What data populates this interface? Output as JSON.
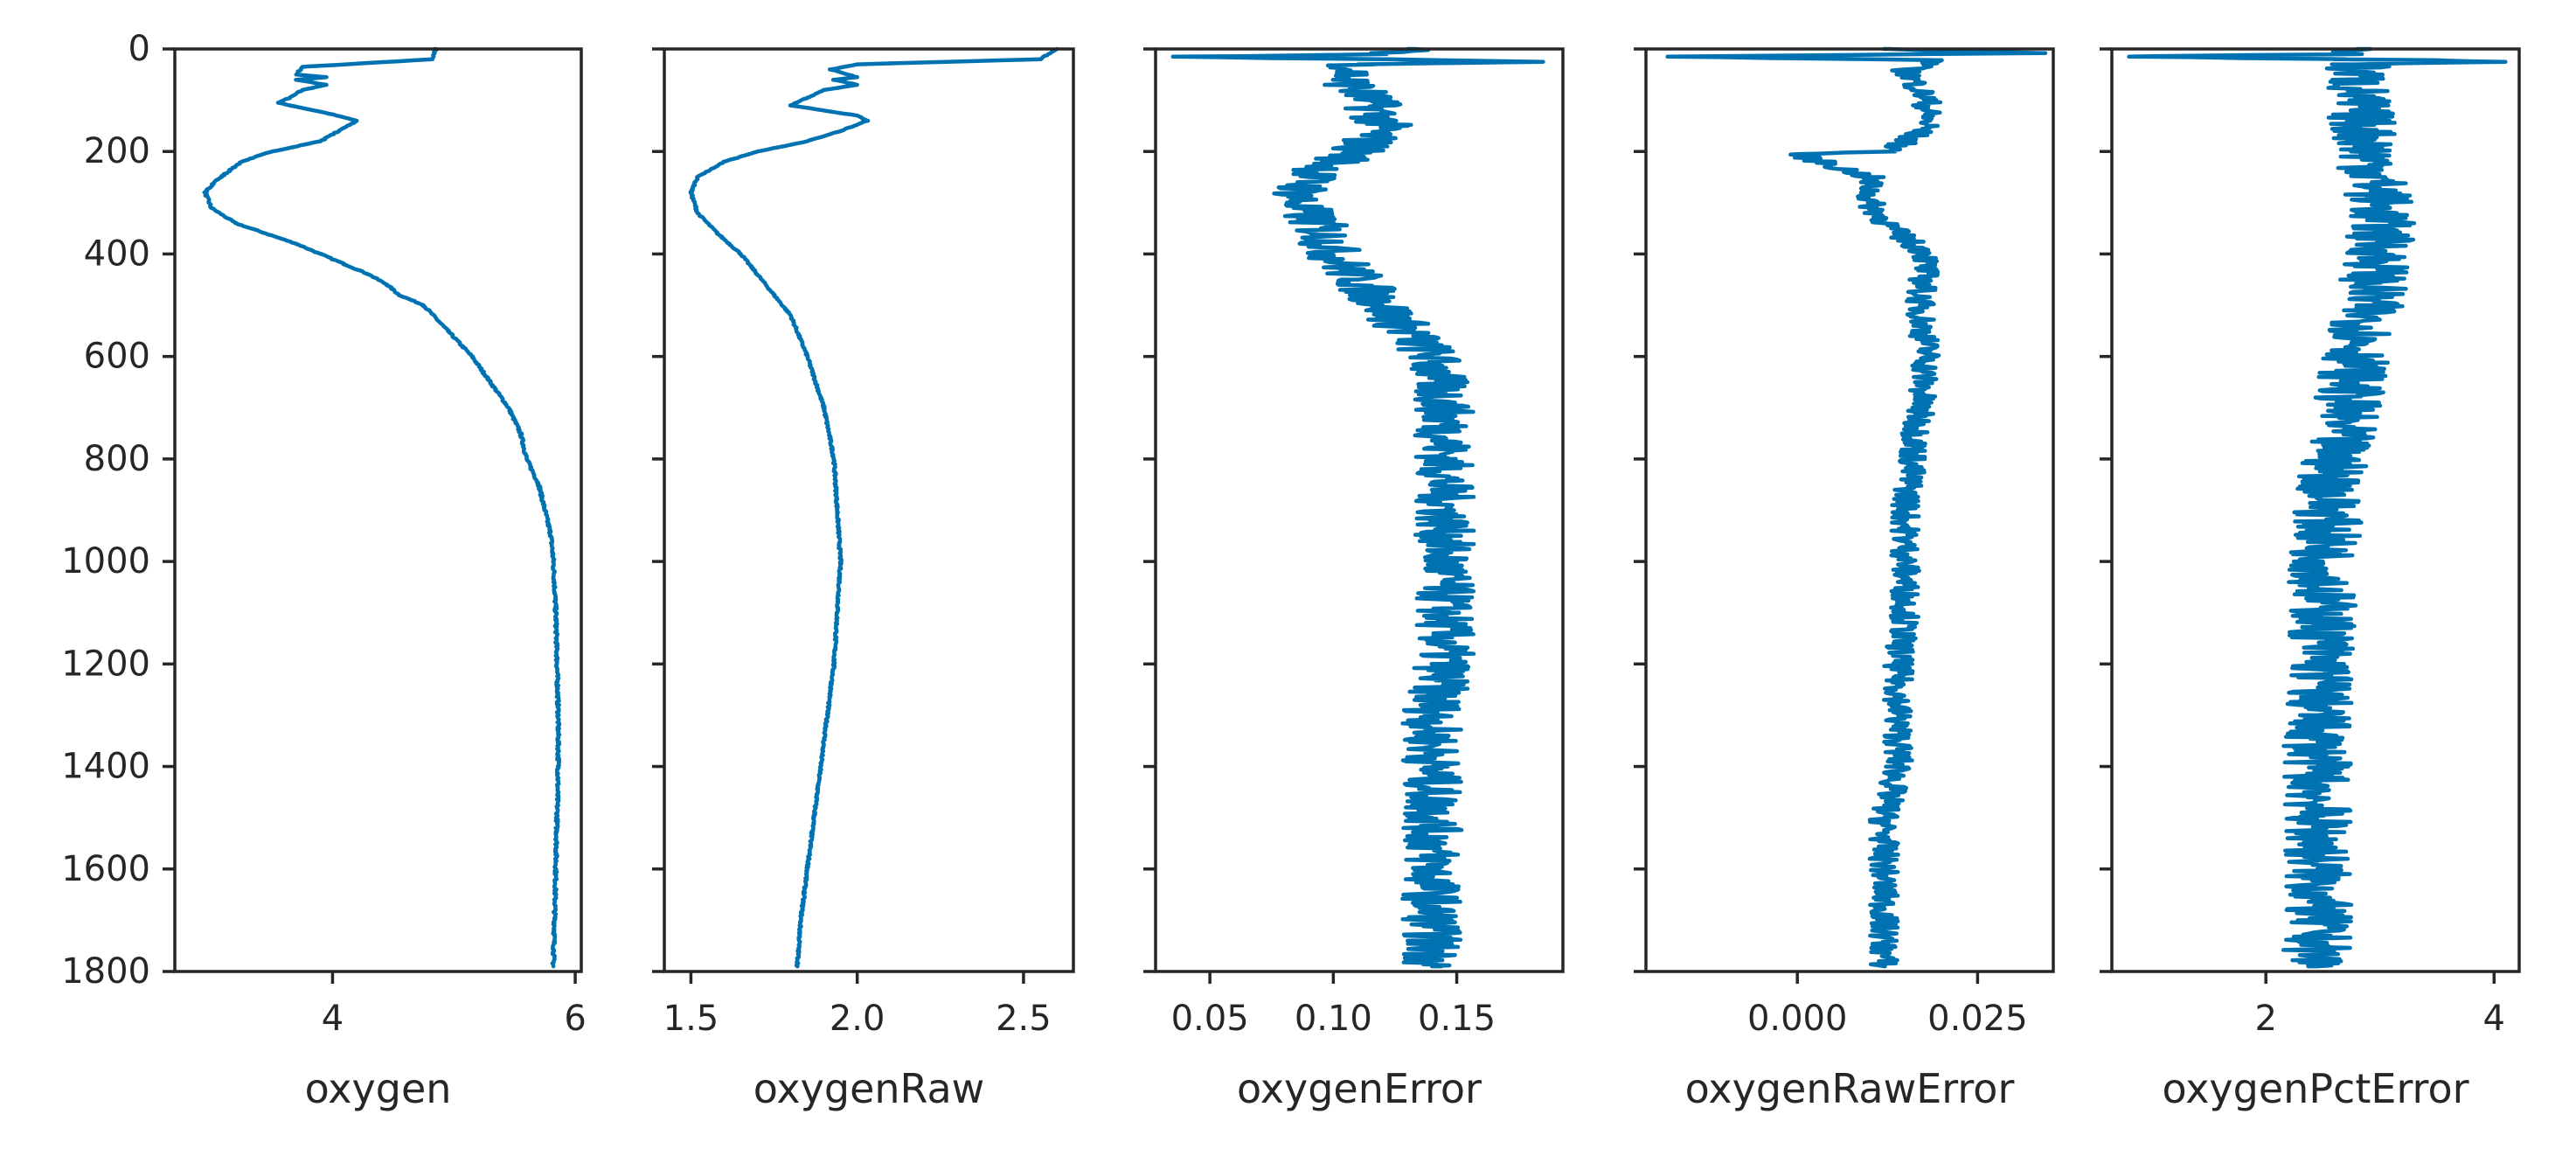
{
  "chart_data": [
    {
      "type": "line",
      "xlabel": "oxygen",
      "ylabel": "",
      "xlim": [
        2.7,
        6.05
      ],
      "ylim": [
        1800,
        0
      ],
      "xticks": [
        4,
        6
      ],
      "xtick_labels": [
        "4",
        "6"
      ],
      "yticks": [
        0,
        200,
        400,
        600,
        800,
        1000,
        1200,
        1400,
        1600,
        1800
      ],
      "ytick_labels": [
        "0",
        "200",
        "400",
        "600",
        "800",
        "1000",
        "1200",
        "1400",
        "1600",
        "1800"
      ],
      "show_ytick_labels": true,
      "grid": false,
      "color": "#0072B2",
      "noise": 0.01,
      "series": [
        {
          "values": [
            [
              4.85,
              0
            ],
            [
              4.82,
              20
            ],
            [
              3.75,
              35
            ],
            [
              3.7,
              50
            ],
            [
              3.95,
              55
            ],
            [
              3.7,
              60
            ],
            [
              3.95,
              70
            ],
            [
              3.75,
              80
            ],
            [
              3.65,
              95
            ],
            [
              3.55,
              105
            ],
            [
              3.75,
              115
            ],
            [
              3.95,
              125
            ],
            [
              4.2,
              140
            ],
            [
              4.05,
              160
            ],
            [
              3.9,
              180
            ],
            [
              3.5,
              200
            ],
            [
              3.25,
              220
            ],
            [
              3.05,
              255
            ],
            [
              2.95,
              280
            ],
            [
              3.0,
              310
            ],
            [
              3.2,
              340
            ],
            [
              3.45,
              360
            ],
            [
              3.7,
              380
            ],
            [
              3.9,
              400
            ],
            [
              4.1,
              420
            ],
            [
              4.3,
              440
            ],
            [
              4.45,
              460
            ],
            [
              4.55,
              480
            ],
            [
              4.75,
              500
            ],
            [
              4.95,
              550
            ],
            [
              5.15,
              600
            ],
            [
              5.3,
              650
            ],
            [
              5.45,
              700
            ],
            [
              5.55,
              750
            ],
            [
              5.6,
              800
            ],
            [
              5.7,
              850
            ],
            [
              5.75,
              900
            ],
            [
              5.8,
              950
            ],
            [
              5.82,
              1000
            ],
            [
              5.84,
              1100
            ],
            [
              5.85,
              1200
            ],
            [
              5.86,
              1300
            ],
            [
              5.86,
              1400
            ],
            [
              5.85,
              1500
            ],
            [
              5.84,
              1600
            ],
            [
              5.83,
              1700
            ],
            [
              5.82,
              1790
            ]
          ]
        }
      ]
    },
    {
      "type": "line",
      "xlabel": "oxygenRaw",
      "ylabel": "",
      "xlim": [
        1.42,
        2.65
      ],
      "ylim": [
        1800,
        0
      ],
      "xticks": [
        1.5,
        2.0,
        2.5
      ],
      "xtick_labels": [
        "1.5",
        "2.0",
        "2.5"
      ],
      "yticks": [
        0,
        200,
        400,
        600,
        800,
        1000,
        1200,
        1400,
        1600,
        1800
      ],
      "ytick_labels": [
        "0",
        "200",
        "400",
        "600",
        "800",
        "1000",
        "1200",
        "1400",
        "1600",
        "1800"
      ],
      "show_ytick_labels": false,
      "grid": false,
      "color": "#0072B2",
      "noise": 0.003,
      "series": [
        {
          "values": [
            [
              2.6,
              0
            ],
            [
              2.55,
              20
            ],
            [
              2.0,
              30
            ],
            [
              1.92,
              40
            ],
            [
              2.0,
              55
            ],
            [
              1.93,
              60
            ],
            [
              2.0,
              70
            ],
            [
              1.9,
              80
            ],
            [
              1.85,
              95
            ],
            [
              1.8,
              110
            ],
            [
              1.9,
              120
            ],
            [
              2.0,
              130
            ],
            [
              2.03,
              140
            ],
            [
              1.95,
              160
            ],
            [
              1.85,
              180
            ],
            [
              1.7,
              200
            ],
            [
              1.6,
              220
            ],
            [
              1.52,
              250
            ],
            [
              1.5,
              280
            ],
            [
              1.52,
              320
            ],
            [
              1.58,
              360
            ],
            [
              1.65,
              400
            ],
            [
              1.7,
              440
            ],
            [
              1.75,
              480
            ],
            [
              1.8,
              520
            ],
            [
              1.85,
              600
            ],
            [
              1.9,
              700
            ],
            [
              1.93,
              800
            ],
            [
              1.94,
              900
            ],
            [
              1.95,
              1000
            ],
            [
              1.94,
              1100
            ],
            [
              1.93,
              1200
            ],
            [
              1.91,
              1300
            ],
            [
              1.89,
              1400
            ],
            [
              1.87,
              1500
            ],
            [
              1.85,
              1600
            ],
            [
              1.83,
              1700
            ],
            [
              1.82,
              1790
            ]
          ]
        }
      ]
    },
    {
      "type": "line",
      "xlabel": "oxygenError",
      "ylabel": "",
      "xlim": [
        0.028,
        0.193
      ],
      "ylim": [
        1800,
        0
      ],
      "xticks": [
        0.05,
        0.1,
        0.15
      ],
      "xtick_labels": [
        "0.05",
        "0.10",
        "0.15"
      ],
      "yticks": [
        0,
        200,
        400,
        600,
        800,
        1000,
        1200,
        1400,
        1600,
        1800
      ],
      "ytick_labels": [
        "0",
        "200",
        "400",
        "600",
        "800",
        "1000",
        "1200",
        "1400",
        "1600",
        "1800"
      ],
      "show_ytick_labels": false,
      "grid": false,
      "color": "#0072B2",
      "noise": 0.012,
      "series": [
        {
          "values": [
            [
              0.13,
              0
            ],
            [
              0.12,
              10
            ],
            [
              0.035,
              15
            ],
            [
              0.12,
              20
            ],
            [
              0.185,
              25
            ],
            [
              0.11,
              30
            ],
            [
              0.105,
              60
            ],
            [
              0.115,
              100
            ],
            [
              0.12,
              150
            ],
            [
              0.11,
              200
            ],
            [
              0.09,
              250
            ],
            [
              0.085,
              300
            ],
            [
              0.095,
              350
            ],
            [
              0.1,
              400
            ],
            [
              0.11,
              450
            ],
            [
              0.12,
              500
            ],
            [
              0.13,
              550
            ],
            [
              0.14,
              600
            ],
            [
              0.145,
              700
            ],
            [
              0.145,
              800
            ],
            [
              0.145,
              900
            ],
            [
              0.145,
              1000
            ],
            [
              0.145,
              1100
            ],
            [
              0.145,
              1200
            ],
            [
              0.14,
              1300
            ],
            [
              0.14,
              1400
            ],
            [
              0.14,
              1500
            ],
            [
              0.14,
              1600
            ],
            [
              0.14,
              1700
            ],
            [
              0.14,
              1790
            ]
          ]
        }
      ]
    },
    {
      "type": "line",
      "xlabel": "oxygenRawError",
      "ylabel": "",
      "xlim": [
        -0.021,
        0.0355
      ],
      "ylim": [
        1800,
        0
      ],
      "xticks": [
        0.0,
        0.025
      ],
      "xtick_labels": [
        "0.000",
        "0.025"
      ],
      "yticks": [
        0,
        200,
        400,
        600,
        800,
        1000,
        1200,
        1400,
        1600,
        1800
      ],
      "ytick_labels": [
        "0",
        "200",
        "400",
        "600",
        "800",
        "1000",
        "1200",
        "1400",
        "1600",
        "1800"
      ],
      "show_ytick_labels": false,
      "grid": false,
      "color": "#0072B2",
      "noise": 0.002,
      "series": [
        {
          "values": [
            [
              0.012,
              0
            ],
            [
              0.034,
              8
            ],
            [
              -0.018,
              15
            ],
            [
              0.02,
              22
            ],
            [
              0.015,
              40
            ],
            [
              0.018,
              100
            ],
            [
              0.018,
              150
            ],
            [
              0.013,
              200
            ],
            [
              0.0,
              205
            ],
            [
              0.01,
              250
            ],
            [
              0.01,
              300
            ],
            [
              0.013,
              350
            ],
            [
              0.018,
              400
            ],
            [
              0.017,
              500
            ],
            [
              0.018,
              600
            ],
            [
              0.017,
              700
            ],
            [
              0.016,
              800
            ],
            [
              0.015,
              900
            ],
            [
              0.015,
              1000
            ],
            [
              0.015,
              1100
            ],
            [
              0.014,
              1200
            ],
            [
              0.014,
              1300
            ],
            [
              0.014,
              1400
            ],
            [
              0.012,
              1500
            ],
            [
              0.012,
              1600
            ],
            [
              0.012,
              1700
            ],
            [
              0.012,
              1790
            ]
          ]
        }
      ]
    },
    {
      "type": "line",
      "xlabel": "oxygenPctError",
      "ylabel": "",
      "xlim": [
        0.65,
        4.22
      ],
      "ylim": [
        1800,
        0
      ],
      "xticks": [
        2,
        4
      ],
      "xtick_labels": [
        "2",
        "4"
      ],
      "yticks": [
        0,
        200,
        400,
        600,
        800,
        1000,
        1200,
        1400,
        1600,
        1800
      ],
      "ytick_labels": [
        "0",
        "200",
        "400",
        "600",
        "800",
        "1000",
        "1200",
        "1400",
        "1600",
        "1800"
      ],
      "show_ytick_labels": false,
      "grid": false,
      "color": "#0072B2",
      "noise": 0.3,
      "series": [
        {
          "values": [
            [
              2.8,
              0
            ],
            [
              2.7,
              10
            ],
            [
              0.8,
              15
            ],
            [
              2.7,
              20
            ],
            [
              4.1,
              25
            ],
            [
              2.8,
              30
            ],
            [
              2.8,
              100
            ],
            [
              2.9,
              200
            ],
            [
              3.0,
              300
            ],
            [
              3.0,
              400
            ],
            [
              2.9,
              500
            ],
            [
              2.8,
              600
            ],
            [
              2.7,
              700
            ],
            [
              2.6,
              800
            ],
            [
              2.55,
              900
            ],
            [
              2.5,
              1000
            ],
            [
              2.5,
              1100
            ],
            [
              2.5,
              1200
            ],
            [
              2.45,
              1300
            ],
            [
              2.45,
              1400
            ],
            [
              2.45,
              1500
            ],
            [
              2.45,
              1600
            ],
            [
              2.45,
              1700
            ],
            [
              2.45,
              1790
            ]
          ]
        }
      ]
    }
  ]
}
